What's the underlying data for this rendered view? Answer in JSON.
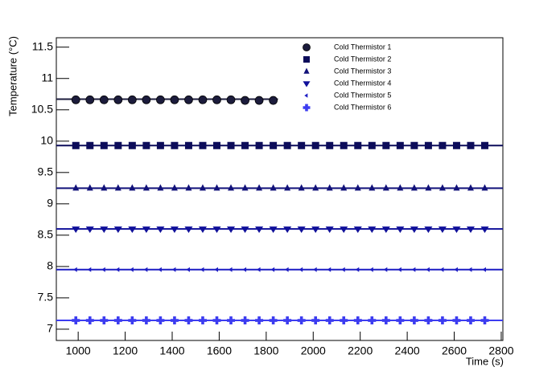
{
  "chart_data": {
    "type": "scatter",
    "x_label": "Time (s)",
    "y_label": "Temperature (°C)",
    "x": [
      990,
      1050,
      1110,
      1170,
      1230,
      1290,
      1350,
      1410,
      1470,
      1530,
      1590,
      1650,
      1710,
      1770,
      1830,
      1890,
      1950,
      2010,
      2070,
      2130,
      2190,
      2250,
      2310,
      2370,
      2430,
      2490,
      2550,
      2610,
      2670,
      2730
    ],
    "xlim": [
      907,
      2807
    ],
    "xticks": [
      1000,
      1200,
      1400,
      1600,
      1800,
      2000,
      2200,
      2400,
      2600,
      2800
    ],
    "ylim": [
      6.82,
      11.65
    ],
    "yticks": [
      7,
      7.5,
      8,
      8.5,
      9,
      9.5,
      10,
      10.5,
      11,
      11.5
    ],
    "series": [
      {
        "name": "Cold Thermistor 1",
        "color": "#1c1c3c",
        "marker": "circle",
        "fit": {
          "value": 10.67,
          "xlim": [
            907,
            1850
          ]
        },
        "values": [
          10.66,
          10.66,
          10.66,
          10.66,
          10.66,
          10.66,
          10.66,
          10.66,
          10.66,
          10.66,
          10.66,
          10.66,
          10.65,
          10.65,
          10.65,
          null,
          null,
          null,
          null,
          null,
          null,
          null,
          null,
          null,
          null,
          null,
          null,
          null,
          null,
          null
        ]
      },
      {
        "name": "Cold Thermistor 2",
        "color": "#0c0c5a",
        "marker": "square",
        "fit": {
          "value": 9.93,
          "xlim": [
            907,
            2807
          ]
        },
        "values": [
          9.93,
          9.93,
          9.93,
          9.93,
          9.93,
          9.93,
          9.93,
          9.93,
          9.93,
          9.93,
          9.93,
          9.93,
          9.93,
          9.93,
          9.93,
          9.93,
          9.93,
          9.93,
          9.93,
          9.93,
          9.93,
          9.93,
          9.93,
          9.93,
          9.93,
          9.93,
          9.93,
          9.93,
          9.93,
          9.93
        ]
      },
      {
        "name": "Cold Thermistor 3",
        "color": "#12127a",
        "marker": "triangle-up",
        "fit": {
          "value": 9.25,
          "xlim": [
            907,
            2807
          ]
        },
        "values": [
          9.25,
          9.25,
          9.25,
          9.25,
          9.25,
          9.25,
          9.25,
          9.25,
          9.25,
          9.25,
          9.25,
          9.25,
          9.25,
          9.25,
          9.25,
          9.25,
          9.25,
          9.25,
          9.25,
          9.25,
          9.25,
          9.25,
          9.25,
          9.25,
          9.25,
          9.25,
          9.25,
          9.25,
          9.25,
          9.25
        ]
      },
      {
        "name": "Cold Thermistor 4",
        "color": "#10109a",
        "marker": "triangle-down",
        "fit": {
          "value": 8.6,
          "xlim": [
            907,
            2807
          ]
        },
        "values": [
          8.6,
          8.6,
          8.6,
          8.6,
          8.6,
          8.6,
          8.6,
          8.6,
          8.6,
          8.6,
          8.6,
          8.6,
          8.6,
          8.6,
          8.6,
          8.6,
          8.6,
          8.6,
          8.6,
          8.6,
          8.6,
          8.6,
          8.6,
          8.6,
          8.6,
          8.6,
          8.6,
          8.6,
          8.6,
          8.6
        ]
      },
      {
        "name": "Cold Thermistor 5",
        "color": "#1c1cc4",
        "marker": "triangle-left",
        "fit": {
          "value": 7.95,
          "xlim": [
            907,
            2807
          ]
        },
        "values": [
          7.95,
          7.95,
          7.95,
          7.95,
          7.95,
          7.95,
          7.95,
          7.95,
          7.95,
          7.95,
          7.95,
          7.95,
          7.95,
          7.95,
          7.95,
          7.95,
          7.95,
          7.95,
          7.95,
          7.95,
          7.95,
          7.95,
          7.95,
          7.95,
          7.95,
          7.95,
          7.95,
          7.95,
          7.95,
          7.95
        ]
      },
      {
        "name": "Cold Thermistor 6",
        "color": "#3c3cf0",
        "marker": "plus",
        "fit": {
          "value": 7.14,
          "xlim": [
            907,
            2807
          ]
        },
        "values": [
          7.14,
          7.14,
          7.14,
          7.14,
          7.14,
          7.14,
          7.14,
          7.14,
          7.14,
          7.14,
          7.14,
          7.14,
          7.14,
          7.14,
          7.14,
          7.14,
          7.14,
          7.14,
          7.14,
          7.14,
          7.14,
          7.14,
          7.14,
          7.14,
          7.14,
          7.14,
          7.14,
          7.14,
          7.14,
          7.14
        ]
      }
    ]
  }
}
